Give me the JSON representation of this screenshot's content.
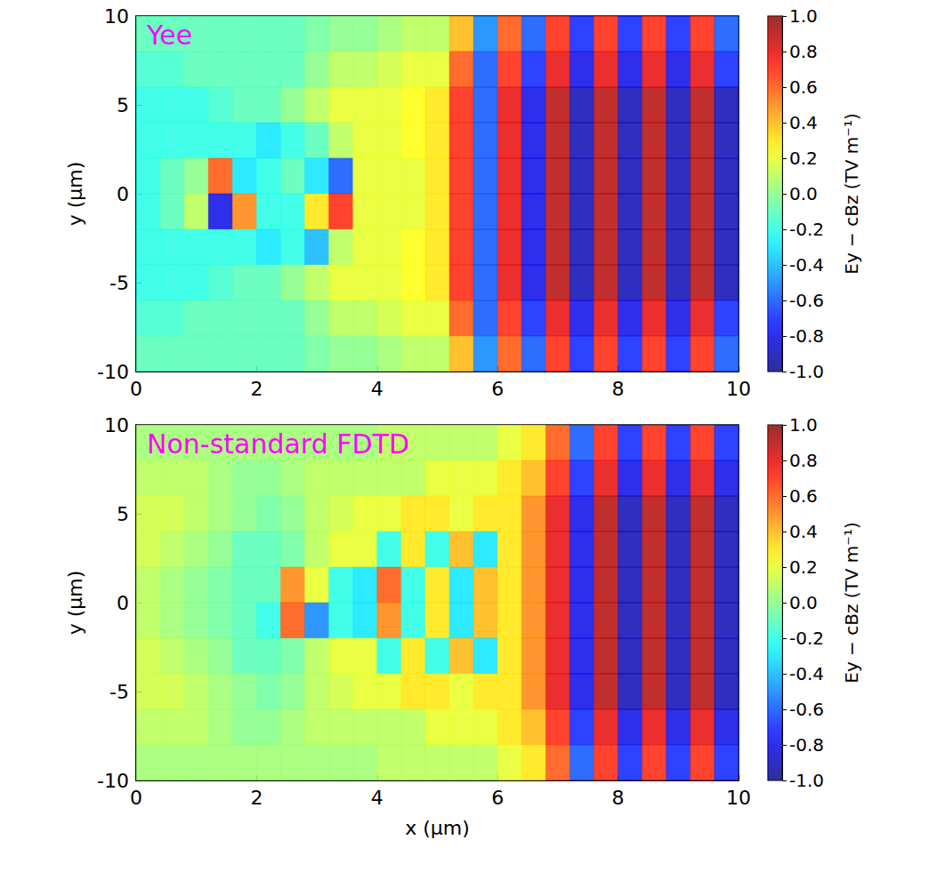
{
  "chart_data": [
    {
      "type": "heatmap",
      "annotation": "Yee",
      "y_label": "y (μm)",
      "xlim": [
        0,
        10
      ],
      "ylim": [
        -10,
        10
      ],
      "xticks": [
        0,
        2,
        4,
        6,
        8,
        10
      ],
      "yticks": [
        -10,
        -5,
        0,
        5,
        10
      ],
      "x": [
        0.2,
        0.6,
        1.0,
        1.4,
        1.8,
        2.2,
        2.6,
        3.0,
        3.4,
        3.8,
        4.2,
        4.6,
        5.0,
        5.4,
        5.8,
        6.2,
        6.6,
        7.0,
        7.4,
        7.8,
        8.2,
        8.6,
        9.0,
        9.4,
        9.8
      ],
      "y": [
        9,
        7,
        5,
        3,
        1,
        -1,
        -3,
        -5,
        -7,
        -9
      ],
      "values": [
        [
          -0.1,
          -0.1,
          -0.1,
          -0.1,
          -0.1,
          -0.1,
          -0.1,
          -0.05,
          0,
          0,
          0.05,
          0.1,
          0.1,
          0.4,
          -0.5,
          0.6,
          -0.6,
          0.7,
          -0.7,
          0.7,
          -0.7,
          0.7,
          -0.7,
          0.7,
          -0.6
        ],
        [
          -0.15,
          -0.15,
          -0.1,
          -0.1,
          -0.1,
          -0.1,
          -0.1,
          0,
          0.1,
          0.1,
          0.15,
          0.2,
          0.2,
          0.6,
          -0.6,
          0.7,
          -0.7,
          0.8,
          -0.8,
          0.8,
          -0.8,
          0.8,
          -0.8,
          0.8,
          -0.7
        ],
        [
          -0.2,
          -0.2,
          -0.2,
          -0.15,
          -0.1,
          -0.1,
          0,
          0.1,
          0.2,
          0.2,
          0.2,
          0.25,
          0.3,
          0.7,
          -0.6,
          0.8,
          -0.8,
          0.9,
          -0.9,
          0.9,
          -0.9,
          0.9,
          -0.9,
          0.9,
          -0.9
        ],
        [
          -0.2,
          -0.2,
          -0.2,
          -0.2,
          -0.2,
          -0.3,
          -0.2,
          -0.1,
          0.1,
          0.2,
          0.2,
          0.25,
          0.3,
          0.7,
          -0.6,
          0.8,
          -0.8,
          0.9,
          -0.9,
          0.9,
          -0.9,
          0.9,
          -0.9,
          0.9,
          -0.9
        ],
        [
          -0.2,
          -0.1,
          0,
          0.6,
          -0.3,
          -0.2,
          -0.1,
          -0.3,
          -0.6,
          0.2,
          0.2,
          0.2,
          0.3,
          0.7,
          -0.6,
          0.8,
          -0.8,
          0.9,
          -0.9,
          0.9,
          -0.9,
          0.9,
          -0.9,
          0.9,
          -0.9
        ],
        [
          -0.2,
          -0.1,
          0.1,
          -0.8,
          0.5,
          -0.2,
          -0.2,
          0.3,
          0.7,
          0.2,
          0.2,
          0.2,
          0.3,
          0.7,
          -0.6,
          0.8,
          -0.8,
          0.9,
          -0.9,
          0.9,
          -0.9,
          0.9,
          -0.9,
          0.9,
          -0.9
        ],
        [
          -0.2,
          -0.2,
          -0.2,
          -0.2,
          -0.2,
          -0.3,
          -0.2,
          -0.4,
          0.1,
          0.2,
          0.2,
          0.25,
          0.3,
          0.7,
          -0.6,
          0.8,
          -0.8,
          0.9,
          -0.9,
          0.9,
          -0.9,
          0.9,
          -0.9,
          0.9,
          -0.9
        ],
        [
          -0.2,
          -0.2,
          -0.2,
          -0.15,
          -0.1,
          -0.1,
          0,
          0.1,
          0.2,
          0.2,
          0.2,
          0.25,
          0.3,
          0.7,
          -0.6,
          0.8,
          -0.8,
          0.9,
          -0.9,
          0.9,
          -0.9,
          0.9,
          -0.9,
          0.9,
          -0.9
        ],
        [
          -0.15,
          -0.15,
          -0.1,
          -0.1,
          -0.1,
          -0.1,
          -0.1,
          0,
          0.1,
          0.1,
          0.15,
          0.2,
          0.2,
          0.6,
          -0.6,
          0.7,
          -0.7,
          0.8,
          -0.8,
          0.8,
          -0.8,
          0.8,
          -0.8,
          0.8,
          -0.7
        ],
        [
          -0.1,
          -0.1,
          -0.1,
          -0.1,
          -0.1,
          -0.1,
          -0.1,
          -0.05,
          0,
          0,
          0.05,
          0.1,
          0.1,
          0.4,
          -0.5,
          0.6,
          -0.6,
          0.7,
          -0.7,
          0.7,
          -0.7,
          0.7,
          -0.7,
          0.7,
          -0.6
        ]
      ],
      "colorbar": {
        "label": "Ey − cBz (TV m⁻¹)",
        "range": [
          -1,
          1
        ],
        "ticks": [
          {
            "value": -1,
            "label": "-1.0"
          },
          -0.8,
          -0.6,
          -0.4,
          -0.2,
          {
            "value": 0,
            "label": "0.0"
          },
          0.2,
          0.4,
          0.6,
          0.8,
          {
            "value": 1,
            "label": "1.0"
          }
        ]
      }
    },
    {
      "type": "heatmap",
      "annotation": "Non-standard FDTD",
      "x_label": "x (μm)",
      "y_label": "y (μm)",
      "xlim": [
        0,
        10
      ],
      "ylim": [
        -10,
        10
      ],
      "xticks": [
        0,
        2,
        4,
        6,
        8,
        10
      ],
      "yticks": [
        -10,
        -5,
        0,
        5,
        10
      ],
      "x": [
        0.2,
        0.6,
        1.0,
        1.4,
        1.8,
        2.2,
        2.6,
        3.0,
        3.4,
        3.8,
        4.2,
        4.6,
        5.0,
        5.4,
        5.8,
        6.2,
        6.6,
        7.0,
        7.4,
        7.8,
        8.2,
        8.6,
        9.0,
        9.4,
        9.8
      ],
      "y": [
        9,
        7,
        5,
        3,
        1,
        -1,
        -3,
        -5,
        -7,
        -9
      ],
      "values": [
        [
          0.05,
          0.05,
          0.05,
          0.05,
          0.05,
          0.05,
          0.05,
          0.05,
          0.05,
          0.05,
          0.1,
          0.1,
          0.1,
          0.1,
          0.1,
          0.2,
          0.3,
          0.6,
          -0.6,
          0.7,
          -0.7,
          0.7,
          -0.7,
          0.7,
          -0.7
        ],
        [
          0.1,
          0.1,
          0.1,
          0.05,
          0,
          0,
          0.05,
          0.1,
          0.1,
          0.1,
          0.1,
          0.1,
          0.2,
          0.2,
          0.2,
          0.3,
          0.4,
          0.7,
          -0.7,
          0.8,
          -0.8,
          0.8,
          -0.8,
          0.8,
          -0.8
        ],
        [
          0.15,
          0.15,
          0.1,
          0.05,
          0,
          -0.05,
          0,
          0.1,
          0.15,
          0.2,
          0.2,
          0.3,
          0.3,
          0.2,
          0.3,
          0.3,
          0.5,
          0.8,
          -0.8,
          0.9,
          -0.9,
          0.9,
          -0.9,
          0.9,
          -0.9
        ],
        [
          0.15,
          0.1,
          0.05,
          0,
          -0.1,
          -0.1,
          -0.05,
          0.1,
          0.2,
          0.2,
          -0.2,
          0.3,
          -0.2,
          0.4,
          -0.3,
          0.3,
          0.5,
          0.8,
          -0.8,
          0.9,
          -0.9,
          0.9,
          -0.9,
          0.9,
          -0.9
        ],
        [
          0.1,
          0.05,
          0,
          -0.05,
          -0.1,
          -0.1,
          0.5,
          0.2,
          -0.2,
          -0.3,
          0.6,
          -0.2,
          0.3,
          -0.3,
          0.4,
          0.3,
          0.5,
          0.8,
          -0.8,
          0.9,
          -0.9,
          0.9,
          -0.9,
          0.9,
          -0.9
        ],
        [
          0.1,
          0.05,
          0,
          -0.05,
          -0.1,
          -0.2,
          0.6,
          -0.5,
          -0.2,
          -0.3,
          0.5,
          -0.2,
          0.3,
          -0.3,
          0.4,
          0.3,
          0.5,
          0.8,
          -0.8,
          0.9,
          -0.9,
          0.9,
          -0.9,
          0.9,
          -0.9
        ],
        [
          0.15,
          0.1,
          0.05,
          0,
          -0.1,
          -0.1,
          -0.05,
          0.1,
          0.2,
          0.2,
          -0.2,
          0.3,
          -0.2,
          0.4,
          -0.3,
          0.3,
          0.5,
          0.8,
          -0.8,
          0.9,
          -0.9,
          0.9,
          -0.9,
          0.9,
          -0.9
        ],
        [
          0.15,
          0.15,
          0.1,
          0.05,
          0,
          -0.05,
          0,
          0.1,
          0.15,
          0.2,
          0.2,
          0.3,
          0.3,
          0.2,
          0.3,
          0.3,
          0.5,
          0.8,
          -0.8,
          0.9,
          -0.9,
          0.9,
          -0.9,
          0.9,
          -0.9
        ],
        [
          0.1,
          0.1,
          0.1,
          0.05,
          0,
          0,
          0.05,
          0.1,
          0.1,
          0.1,
          0.1,
          0.1,
          0.2,
          0.2,
          0.2,
          0.3,
          0.4,
          0.7,
          -0.7,
          0.8,
          -0.8,
          0.8,
          -0.8,
          0.8,
          -0.8
        ],
        [
          0.05,
          0.05,
          0.05,
          0.05,
          0.05,
          0.05,
          0.05,
          0.05,
          0.05,
          0.05,
          0.1,
          0.1,
          0.1,
          0.1,
          0.1,
          0.2,
          0.3,
          0.6,
          -0.6,
          0.7,
          -0.7,
          0.7,
          -0.7,
          0.7,
          -0.7
        ]
      ],
      "colorbar": {
        "label": "Ey − cBz (TV m⁻¹)",
        "range": [
          -1,
          1
        ],
        "ticks": [
          {
            "value": -1,
            "label": "-1.0"
          },
          -0.8,
          -0.6,
          -0.4,
          -0.2,
          {
            "value": 0,
            "label": "0.0"
          },
          0.2,
          0.4,
          0.6,
          0.8,
          {
            "value": 1,
            "label": "1.0"
          }
        ]
      }
    }
  ]
}
